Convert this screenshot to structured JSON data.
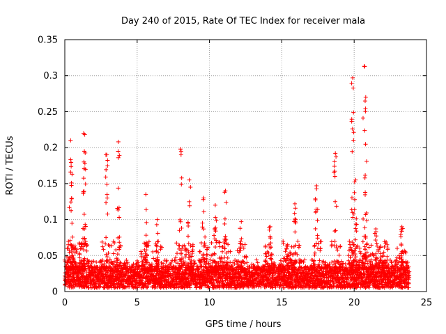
{
  "chart_data": {
    "type": "scatter",
    "title": "Day 240 of 2015, Rate Of TEC Index for receiver mala",
    "xlabel": "GPS time / hours",
    "ylabel": "ROTI / TECUs",
    "xlim": [
      0,
      25
    ],
    "ylim": [
      0,
      0.35
    ],
    "xticks": [
      0,
      5,
      10,
      15,
      20,
      25
    ],
    "yticks": [
      0,
      0.05,
      0.1,
      0.15,
      0.2,
      0.25,
      0.3,
      0.35
    ],
    "grid": true,
    "marker": "+",
    "color": "#ff0000",
    "series": [
      {
        "name": "ROTI",
        "baseline": {
          "x_start": 0.0,
          "x_end": 23.8,
          "x_step": 0.02,
          "y_min": 0.005,
          "y_max": 0.035
        },
        "arcs": [
          {
            "center": 0.4,
            "peak": 0.21
          },
          {
            "center": 0.5,
            "peak": 0.163
          },
          {
            "center": 1.3,
            "peak": 0.22
          },
          {
            "center": 1.35,
            "peak": 0.195
          },
          {
            "center": 2.9,
            "peak": 0.19
          },
          {
            "center": 3.7,
            "peak": 0.208
          },
          {
            "center": 5.6,
            "peak": 0.135
          },
          {
            "center": 6.4,
            "peak": 0.1
          },
          {
            "center": 8.0,
            "peak": 0.198
          },
          {
            "center": 8.6,
            "peak": 0.155
          },
          {
            "center": 9.6,
            "peak": 0.13
          },
          {
            "center": 10.4,
            "peak": 0.12
          },
          {
            "center": 11.1,
            "peak": 0.14
          },
          {
            "center": 12.2,
            "peak": 0.097
          },
          {
            "center": 14.2,
            "peak": 0.09
          },
          {
            "center": 15.4,
            "peak": 0.065
          },
          {
            "center": 15.9,
            "peak": 0.122
          },
          {
            "center": 17.4,
            "peak": 0.147
          },
          {
            "center": 18.7,
            "peak": 0.192
          },
          {
            "center": 19.9,
            "peak": 0.297
          },
          {
            "center": 20.1,
            "peak": 0.155
          },
          {
            "center": 20.7,
            "peak": 0.313
          },
          {
            "center": 20.8,
            "peak": 0.27
          },
          {
            "center": 21.5,
            "peak": 0.087
          },
          {
            "center": 22.0,
            "peak": 0.05
          },
          {
            "center": 23.3,
            "peak": 0.09
          }
        ]
      }
    ]
  }
}
